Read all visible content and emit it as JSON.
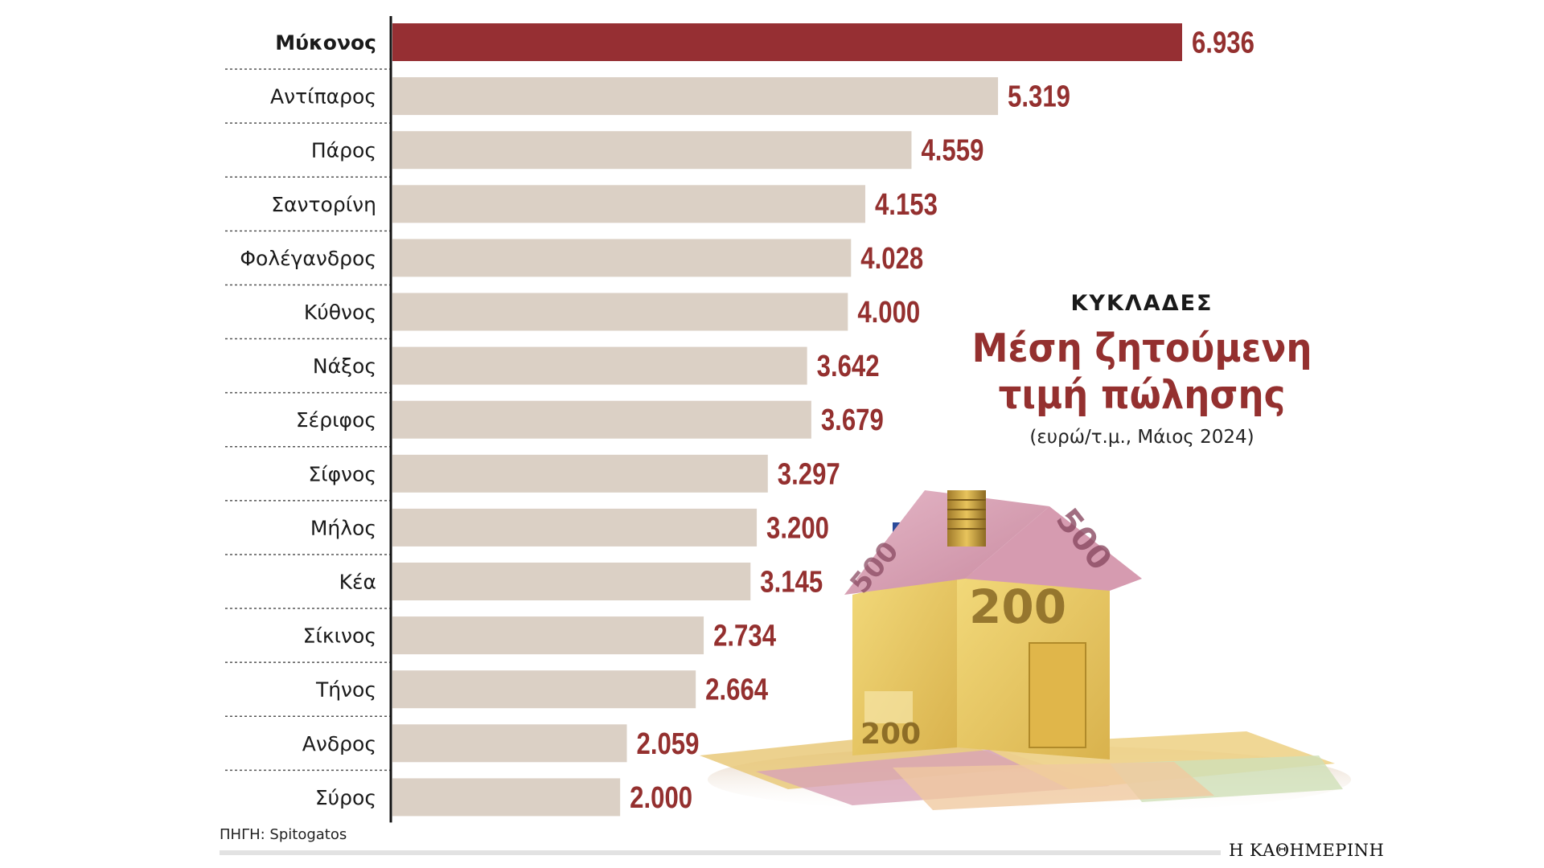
{
  "chart_data": {
    "type": "bar",
    "orientation": "horizontal",
    "categories": [
      "Μύκονος",
      "Αντίπαρος",
      "Πάρος",
      "Σαντορίνη",
      "Φολέγανδρος",
      "Κύθνος",
      "Νάξος",
      "Σέριφος",
      "Σίφνος",
      "Μήλος",
      "Κέα",
      "Σίκινος",
      "Τήνος",
      "Ανδρος",
      "Σύρος"
    ],
    "values": [
      6936,
      5319,
      4559,
      4153,
      4028,
      4000,
      3642,
      3679,
      3297,
      3200,
      3145,
      2734,
      2664,
      2059,
      2000
    ],
    "value_labels": [
      "6.936",
      "5.319",
      "4.559",
      "4.153",
      "4.028",
      "4.000",
      "3.642",
      "3.679",
      "3.297",
      "3.200",
      "3.145",
      "2.734",
      "2.664",
      "2.059",
      "2.000"
    ],
    "highlight_category": "Μύκονος",
    "title": "Μέση ζητούμενη τιμή πώλησης",
    "kicker": "ΚΥΚΛΑΔΕΣ",
    "subtitle": "(ευρώ/τ.μ., Μάιος 2024)",
    "xlim": [
      0,
      6936
    ],
    "grid": false,
    "legend": "none"
  },
  "colors": {
    "highlight_bar": "#962f33",
    "bar": "#dbd0c5",
    "value_text": "#94302f",
    "axis": "#111111"
  },
  "image": {
    "icon": "euro-banknote-house-image",
    "description": "house made of euro banknotes"
  },
  "source": "ΠΗΓΗ: Spitogatos",
  "brand": "Η ΚΑΘΗΜΕΡΙΝΗ"
}
